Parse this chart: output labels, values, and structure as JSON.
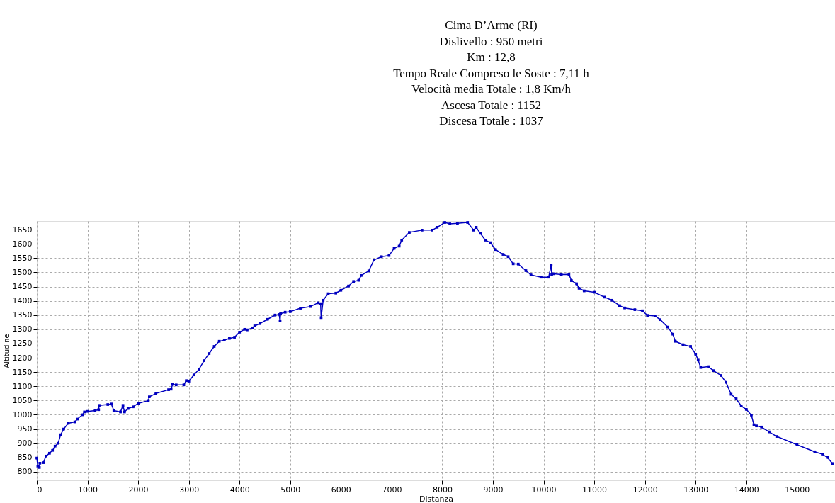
{
  "chart_data": {
    "type": "line",
    "title": "Cima D’Arme (RI)",
    "annotations": [
      "Dislivello : 950 metri",
      "Km : 12,8",
      "Tempo Reale Compreso le Soste : 7,11 h",
      "Velocità media Totale : 1,8 Km/h",
      "Ascesa Totale : 1152",
      "Discesa Totale : 1037"
    ],
    "xlabel": "Distanza",
    "ylabel": "Altitudine",
    "xlim": [
      0,
      15750
    ],
    "ylim": [
      770,
      1680
    ],
    "xticks": [
      0,
      1000,
      2000,
      3000,
      4000,
      5000,
      6000,
      7000,
      8000,
      9000,
      10000,
      11000,
      12000,
      13000,
      14000,
      15000
    ],
    "yticks": [
      800,
      850,
      900,
      950,
      1000,
      1050,
      1100,
      1150,
      1200,
      1250,
      1300,
      1350,
      1400,
      1450,
      1500,
      1550,
      1600,
      1650
    ],
    "grid": true,
    "marker": "square",
    "line_style": "solid",
    "series": [
      {
        "color": "#0000c0",
        "x": [
          0,
          20,
          50,
          60,
          130,
          180,
          250,
          310,
          360,
          420,
          470,
          530,
          620,
          750,
          800,
          900,
          940,
          1000,
          1150,
          1220,
          1230,
          1400,
          1470,
          1520,
          1650,
          1700,
          1730,
          1800,
          1900,
          2000,
          2200,
          2220,
          2350,
          2600,
          2650,
          2680,
          2750,
          2900,
          2950,
          3000,
          3100,
          3200,
          3300,
          3400,
          3500,
          3600,
          3700,
          3800,
          3900,
          4000,
          4100,
          4150,
          4250,
          4300,
          4400,
          4550,
          4700,
          4780,
          4800,
          4810,
          4900,
          5000,
          5200,
          5400,
          5550,
          5600,
          5610,
          5650,
          5750,
          5900,
          6000,
          6150,
          6250,
          6350,
          6400,
          6550,
          6650,
          6800,
          6950,
          7050,
          7150,
          7200,
          7350,
          7600,
          7800,
          7900,
          8050,
          8150,
          8300,
          8500,
          8620,
          8670,
          8750,
          8850,
          8950,
          9050,
          9200,
          9300,
          9400,
          9500,
          9650,
          9750,
          9950,
          10100,
          10150,
          10160,
          10200,
          10350,
          10500,
          10550,
          10650,
          10700,
          10800,
          11000,
          11200,
          11350,
          11500,
          11600,
          11800,
          11950,
          12050,
          12200,
          12300,
          12450,
          12550,
          12600,
          12750,
          12900,
          13000,
          13050,
          13100,
          13250,
          13350,
          13500,
          13600,
          13700,
          13800,
          13900,
          14000,
          14100,
          14150,
          14200,
          14300,
          14450,
          14600,
          15000,
          15350,
          15500,
          15600,
          15700
        ],
        "values": [
          848,
          820,
          815,
          830,
          832,
          855,
          865,
          875,
          890,
          900,
          930,
          950,
          970,
          975,
          985,
          1000,
          1010,
          1012,
          1015,
          1018,
          1033,
          1036,
          1038,
          1015,
          1010,
          1033,
          1010,
          1022,
          1028,
          1040,
          1050,
          1063,
          1075,
          1088,
          1090,
          1107,
          1105,
          1105,
          1120,
          1118,
          1140,
          1160,
          1190,
          1215,
          1240,
          1258,
          1262,
          1268,
          1272,
          1290,
          1300,
          1298,
          1305,
          1312,
          1320,
          1335,
          1350,
          1352,
          1330,
          1355,
          1360,
          1362,
          1374,
          1380,
          1393,
          1390,
          1341,
          1402,
          1425,
          1427,
          1437,
          1452,
          1468,
          1472,
          1489,
          1505,
          1543,
          1555,
          1559,
          1584,
          1592,
          1613,
          1640,
          1648,
          1648,
          1658,
          1675,
          1670,
          1672,
          1675,
          1648,
          1658,
          1637,
          1613,
          1604,
          1580,
          1563,
          1555,
          1530,
          1529,
          1506,
          1491,
          1483,
          1483,
          1526,
          1492,
          1495,
          1492,
          1493,
          1471,
          1460,
          1444,
          1435,
          1430,
          1413,
          1402,
          1383,
          1375,
          1369,
          1365,
          1349,
          1347,
          1334,
          1308,
          1283,
          1258,
          1246,
          1240,
          1213,
          1192,
          1166,
          1169,
          1155,
          1138,
          1114,
          1072,
          1056,
          1031,
          1019,
          999,
          965,
          961,
          957,
          940,
          924,
          895,
          870,
          862,
          850,
          829
        ]
      }
    ]
  }
}
